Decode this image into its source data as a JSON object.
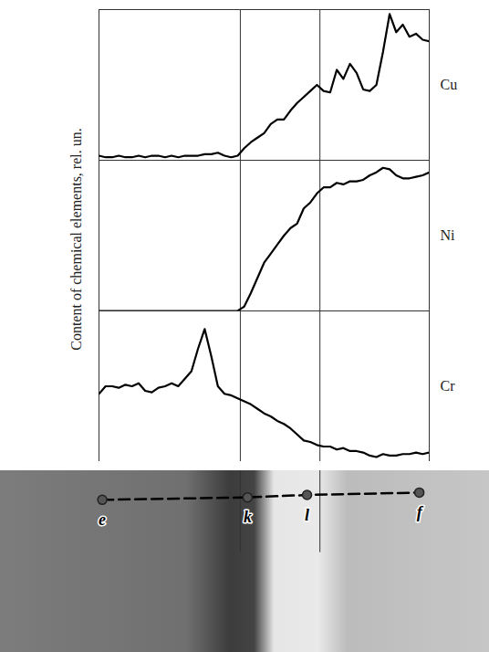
{
  "chart_data": {
    "type": "line",
    "y_label": "Content of chemical elements, rel. un.",
    "tick_labels": false,
    "xlim": [
      0,
      100
    ],
    "ylim": [
      0,
      1
    ],
    "x": [
      0,
      2,
      4,
      6,
      8,
      10,
      12,
      14,
      16,
      18,
      20,
      22,
      24,
      26,
      28,
      30,
      32,
      34,
      36,
      38,
      40,
      42,
      44,
      46,
      48,
      50,
      52,
      54,
      56,
      58,
      60,
      62,
      64,
      66,
      68,
      70,
      72,
      74,
      76,
      78,
      80,
      82,
      84,
      86,
      88,
      90,
      92,
      94,
      96,
      98,
      100
    ],
    "series": [
      {
        "name": "Cu",
        "color": "#000000",
        "values": [
          0.03,
          0.02,
          0.02,
          0.03,
          0.02,
          0.02,
          0.03,
          0.02,
          0.03,
          0.03,
          0.02,
          0.03,
          0.02,
          0.03,
          0.03,
          0.03,
          0.04,
          0.04,
          0.05,
          0.03,
          0.02,
          0.03,
          0.08,
          0.12,
          0.15,
          0.18,
          0.24,
          0.27,
          0.27,
          0.33,
          0.38,
          0.42,
          0.46,
          0.5,
          0.46,
          0.45,
          0.6,
          0.54,
          0.64,
          0.58,
          0.47,
          0.46,
          0.5,
          0.72,
          0.97,
          0.85,
          0.9,
          0.82,
          0.84,
          0.8,
          0.79
        ]
      },
      {
        "name": "Ni",
        "color": "#000000",
        "values": [
          0,
          0,
          0,
          0,
          0,
          0,
          0,
          0,
          0,
          0,
          0,
          0,
          0,
          0,
          0,
          0,
          0,
          0,
          0,
          0,
          0,
          0,
          0.03,
          0.12,
          0.22,
          0.32,
          0.38,
          0.44,
          0.5,
          0.55,
          0.58,
          0.68,
          0.72,
          0.78,
          0.82,
          0.82,
          0.85,
          0.84,
          0.86,
          0.86,
          0.87,
          0.9,
          0.92,
          0.95,
          0.94,
          0.9,
          0.88,
          0.88,
          0.89,
          0.9,
          0.92
        ]
      },
      {
        "name": "Cr",
        "color": "#000000",
        "values": [
          0.45,
          0.5,
          0.5,
          0.49,
          0.51,
          0.5,
          0.52,
          0.47,
          0.46,
          0.49,
          0.5,
          0.52,
          0.5,
          0.55,
          0.6,
          0.75,
          0.88,
          0.7,
          0.5,
          0.45,
          0.44,
          0.42,
          0.4,
          0.38,
          0.35,
          0.32,
          0.3,
          0.27,
          0.25,
          0.22,
          0.18,
          0.14,
          0.13,
          0.11,
          0.1,
          0.1,
          0.08,
          0.09,
          0.07,
          0.07,
          0.06,
          0.04,
          0.03,
          0.05,
          0.04,
          0.04,
          0.05,
          0.05,
          0.06,
          0.05,
          0.06
        ]
      }
    ],
    "vlines": [
      42.8,
      66.9
    ],
    "profile_line": [
      {
        "label": "e",
        "x": 1
      },
      {
        "label": "k",
        "x": 45
      },
      {
        "label": "l",
        "x": 63
      },
      {
        "label": "f",
        "x": 97
      }
    ]
  }
}
